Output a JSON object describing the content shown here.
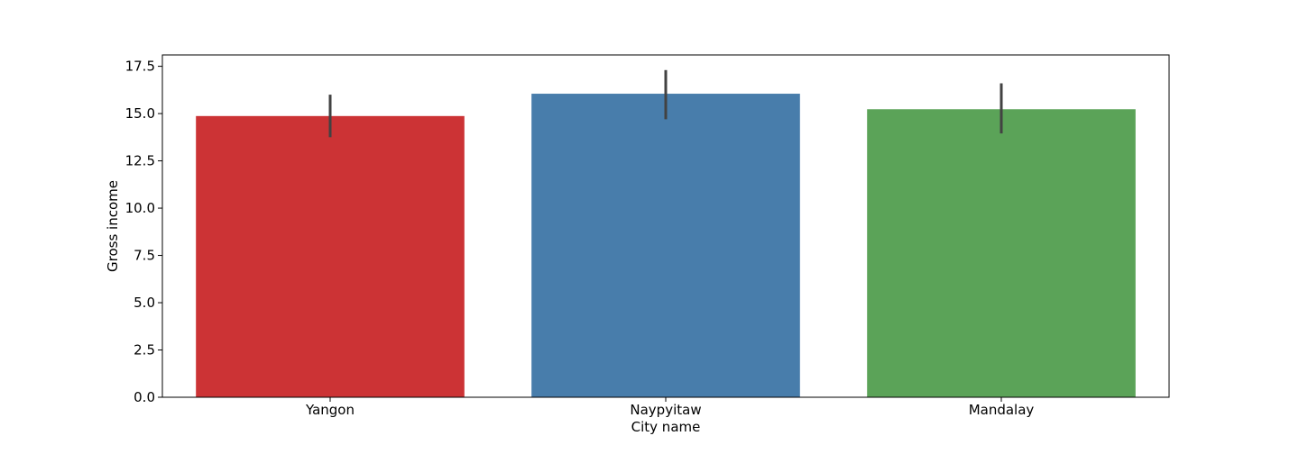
{
  "chart_data": {
    "type": "bar",
    "title": "",
    "xlabel": "City name",
    "ylabel": "Gross income",
    "categories": [
      "Yangon",
      "Naypyitaw",
      "Mandalay"
    ],
    "values": [
      14.87,
      16.05,
      15.23
    ],
    "error_bars": [
      {
        "low": 13.75,
        "high": 16.0
      },
      {
        "low": 14.7,
        "high": 17.3
      },
      {
        "low": 13.95,
        "high": 16.6
      }
    ],
    "colors": [
      "#cc3335",
      "#487dab",
      "#5ba358"
    ],
    "error_bar_color": "#424242",
    "ylim": [
      0,
      18.1
    ],
    "yticks": [
      0.0,
      2.5,
      5.0,
      7.5,
      10.0,
      12.5,
      15.0,
      17.5
    ],
    "ytick_labels": [
      "0.0",
      "2.5",
      "5.0",
      "7.5",
      "10.0",
      "12.5",
      "15.0",
      "17.5"
    ],
    "grid": false,
    "legend": "none"
  }
}
